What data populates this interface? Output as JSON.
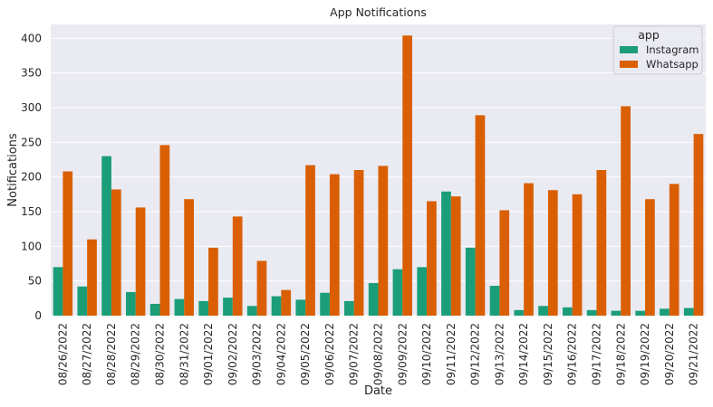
{
  "chart_data": {
    "type": "bar",
    "title": "App Notifications",
    "xlabel": "Date",
    "ylabel": "Notifications",
    "ylim": [
      0,
      420
    ],
    "yticks": [
      0,
      50,
      100,
      150,
      200,
      250,
      300,
      350,
      400
    ],
    "grid": true,
    "legend": {
      "title": "app",
      "placement": "top-right"
    },
    "categories": [
      "08/26/2022",
      "08/27/2022",
      "08/28/2022",
      "08/29/2022",
      "08/30/2022",
      "08/31/2022",
      "09/01/2022",
      "09/02/2022",
      "09/03/2022",
      "09/04/2022",
      "09/05/2022",
      "09/06/2022",
      "09/07/2022",
      "09/08/2022",
      "09/09/2022",
      "09/10/2022",
      "09/11/2022",
      "09/12/2022",
      "09/13/2022",
      "09/14/2022",
      "09/15/2022",
      "09/16/2022",
      "09/17/2022",
      "09/18/2022",
      "09/19/2022",
      "09/20/2022",
      "09/21/2022"
    ],
    "series": [
      {
        "name": "Instagram",
        "color": "#1b9e77",
        "values": [
          70,
          42,
          230,
          34,
          17,
          24,
          21,
          26,
          14,
          28,
          23,
          33,
          21,
          47,
          67,
          70,
          179,
          98,
          43,
          8,
          14,
          12,
          8,
          7,
          7,
          10,
          11
        ]
      },
      {
        "name": "Whatsapp",
        "color": "#d95f02",
        "values": [
          208,
          110,
          182,
          156,
          246,
          168,
          98,
          143,
          79,
          37,
          217,
          204,
          210,
          216,
          404,
          165,
          172,
          289,
          152,
          191,
          181,
          175,
          210,
          302,
          168,
          190,
          262
        ]
      }
    ]
  },
  "colors": {
    "plot_background": "#eaeaf2",
    "grid": "#ffffff",
    "text": "#262626"
  }
}
